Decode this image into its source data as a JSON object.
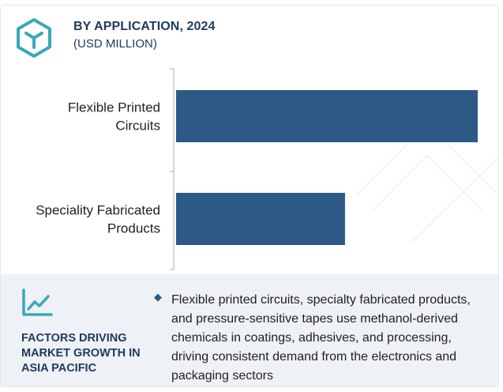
{
  "header": {
    "icon": "cube-icon",
    "title": "BY APPLICATION, 2024",
    "subtitle": "(USD MILLION)"
  },
  "chart_data": {
    "type": "bar",
    "orientation": "horizontal",
    "categories": [
      [
        "Flexible Printed",
        "Circuits"
      ],
      [
        "Speciality Fabricated",
        "Products"
      ]
    ],
    "values": [
      100,
      56
    ],
    "xlim": [
      0,
      100
    ],
    "bar_color": "#2d5986",
    "axis_color": "#b8bcc2",
    "grid": false,
    "legend": false
  },
  "factors": {
    "icon": "line-chart-icon",
    "title": "FACTORS DRIVING MARKET GROWTH IN ASIA PACIFIC",
    "bullet_icon": "diamond-bullet-icon",
    "text": "Flexible printed circuits, specialty fabricated products, and pressure-sensitive tapes use methanol-derived chemicals in coatings, adhesives, and processing, driving consistent demand from the electronics and packaging sectors"
  },
  "colors": {
    "accent": "#1f3a5a",
    "icon_teal": "#3aa8b9",
    "panel_bg": "#eef1f5"
  }
}
